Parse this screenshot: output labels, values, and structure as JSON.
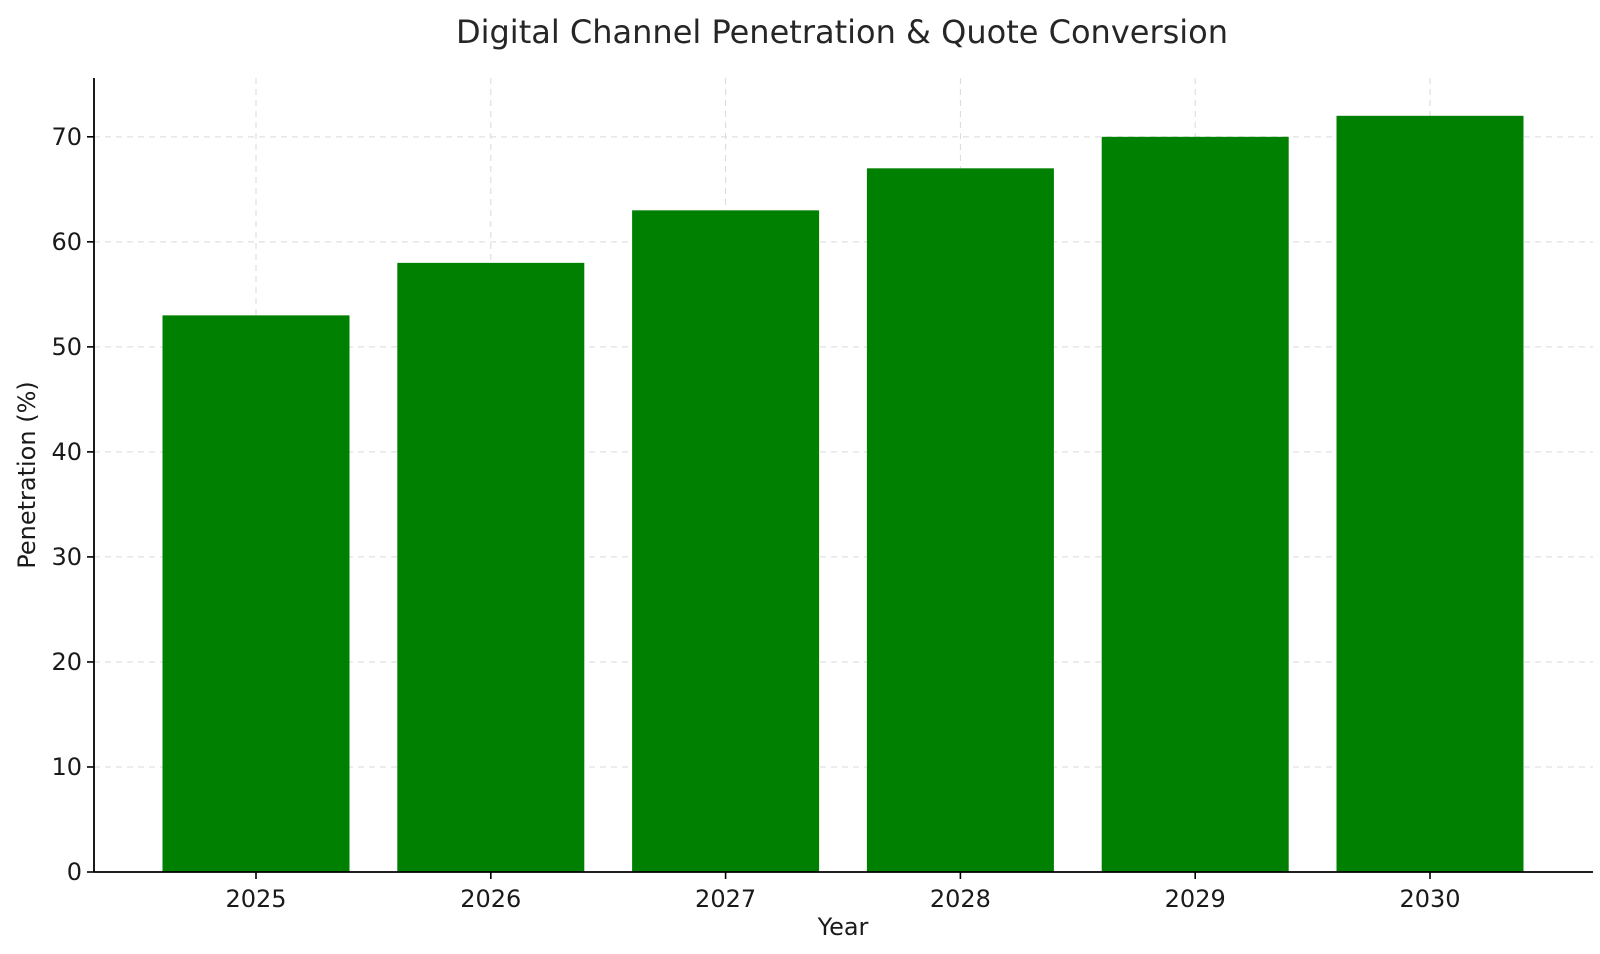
{
  "chart_data": {
    "type": "bar",
    "title": "Digital Channel Penetration & Quote Conversion",
    "xlabel": "Year",
    "ylabel": "Penetration (%)",
    "categories": [
      "2025",
      "2026",
      "2027",
      "2028",
      "2029",
      "2030"
    ],
    "values": [
      53,
      58,
      63,
      67,
      70,
      72
    ],
    "ylim": [
      0,
      75.6
    ],
    "yticks": [
      0,
      10,
      20,
      30,
      40,
      50,
      60,
      70
    ],
    "grid": true,
    "bar_color": "#008000",
    "legend": "none"
  }
}
